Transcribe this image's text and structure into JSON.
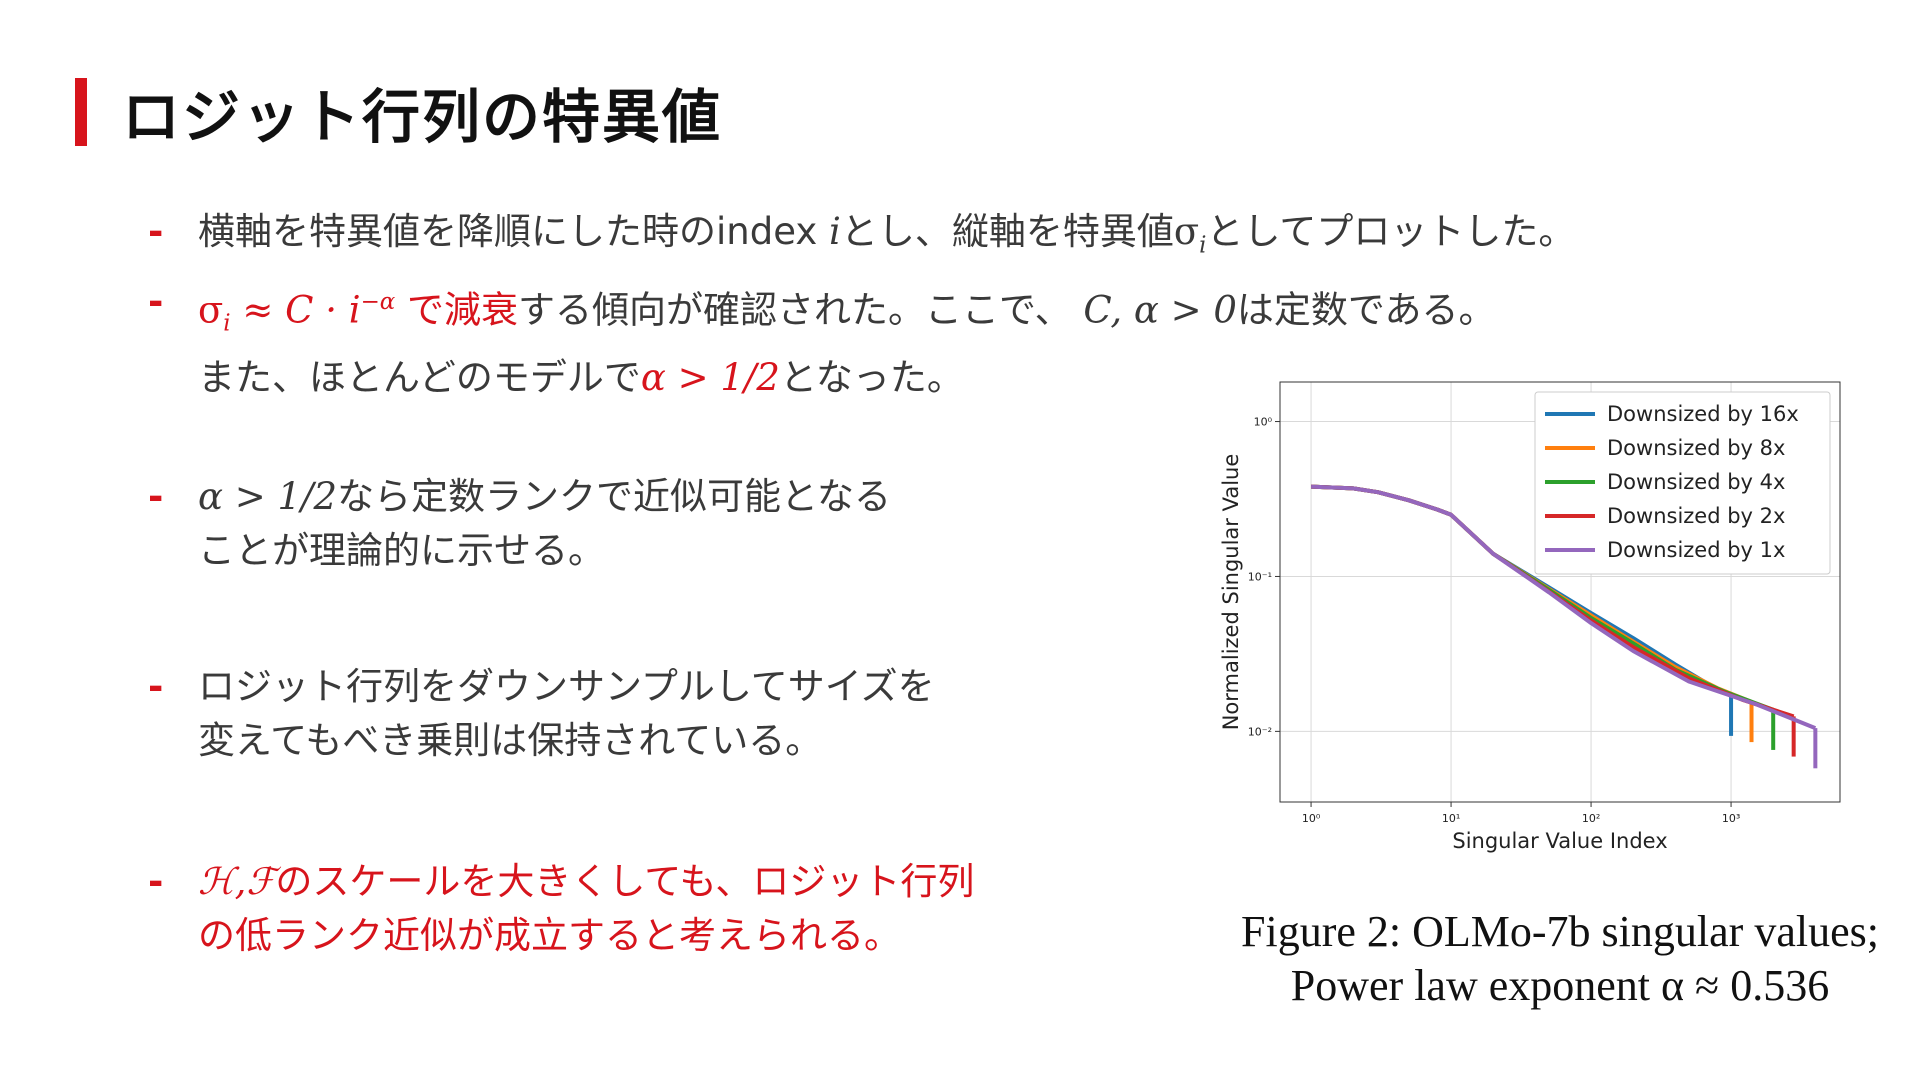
{
  "title": "ロジット行列の特異値",
  "bullets": [
    {
      "line1_pre": "横軸を特異値を降順にした時のindex ",
      "line1_var": "i",
      "line1_mid": "とし、縦軸を特異値",
      "line1_sigma": "σ",
      "line1_sub": "i",
      "line1_post": "としてプロットした。"
    },
    {
      "red_sigma": "σ",
      "red_sub": "i",
      "red_approx": " ≈ C · i",
      "red_sup": "−α",
      "red_text": " で減衰",
      "rest": "する傾向が確認された。ここで、",
      "consts": " C, α > 0",
      "rest2": "は定数である。",
      "line2_pre": "また、ほとんどのモデルで",
      "line2_red": "α > 1/2",
      "line2_post": "となった。"
    },
    {
      "math": "α > 1/2",
      "line1": "なら定数ランクで近似可能となる",
      "line2": "ことが理論的に示せる。"
    },
    {
      "line1": "ロジット行列をダウンサンプルしてサイズを",
      "line2": "変えてもべき乗則は保持されている。"
    },
    {
      "math": "ℋ,ℱ",
      "line1": "のスケールを大きくしても、ロジット行列",
      "line2": "の低ランク近似が成立すると考えられる。"
    }
  ],
  "caption": {
    "line1": "Figure 2: OLMo-7b singular values;",
    "line2": "Power law exponent α ≈ 0.536"
  },
  "chart_data": {
    "type": "line",
    "xlabel": "Singular Value Index",
    "ylabel": "Normalized Singular Value",
    "xscale": "log",
    "yscale": "log",
    "xlim": [
      0.6,
      6000
    ],
    "ylim": [
      0.0035,
      1.8
    ],
    "xticks": [
      {
        "value": 1,
        "label": "10⁰"
      },
      {
        "value": 10,
        "label": "10¹"
      },
      {
        "value": 100,
        "label": "10²"
      },
      {
        "value": 1000,
        "label": "10³"
      }
    ],
    "yticks": [
      {
        "value": 1,
        "label": "10⁰"
      },
      {
        "value": 0.1,
        "label": "10⁻¹"
      },
      {
        "value": 0.01,
        "label": "10⁻²"
      }
    ],
    "grid": true,
    "legend_position": "top-right",
    "series": [
      {
        "name": "Downsized by 16x",
        "color": "#1f77b4",
        "end": 1000,
        "points": [
          [
            1,
            0.38
          ],
          [
            2,
            0.37
          ],
          [
            3,
            0.35
          ],
          [
            5,
            0.31
          ],
          [
            8,
            0.27
          ],
          [
            10,
            0.25
          ],
          [
            20,
            0.14
          ],
          [
            50,
            0.085
          ],
          [
            100,
            0.058
          ],
          [
            200,
            0.04
          ],
          [
            400,
            0.027
          ],
          [
            700,
            0.02
          ],
          [
            1000,
            0.017
          ]
        ]
      },
      {
        "name": "Downsized by 8x",
        "color": "#ff7f0e",
        "end": 1400,
        "points": [
          [
            1,
            0.38
          ],
          [
            2,
            0.37
          ],
          [
            3,
            0.35
          ],
          [
            5,
            0.31
          ],
          [
            8,
            0.27
          ],
          [
            10,
            0.25
          ],
          [
            20,
            0.14
          ],
          [
            50,
            0.083
          ],
          [
            100,
            0.056
          ],
          [
            200,
            0.038
          ],
          [
            400,
            0.026
          ],
          [
            800,
            0.019
          ],
          [
            1400,
            0.0155
          ]
        ]
      },
      {
        "name": "Downsized by 4x",
        "color": "#2ca02c",
        "end": 2000,
        "points": [
          [
            1,
            0.38
          ],
          [
            2,
            0.37
          ],
          [
            3,
            0.35
          ],
          [
            5,
            0.31
          ],
          [
            8,
            0.27
          ],
          [
            10,
            0.25
          ],
          [
            20,
            0.14
          ],
          [
            50,
            0.082
          ],
          [
            100,
            0.054
          ],
          [
            200,
            0.037
          ],
          [
            400,
            0.025
          ],
          [
            900,
            0.018
          ],
          [
            2000,
            0.0138
          ]
        ]
      },
      {
        "name": "Downsized by 2x",
        "color": "#d62728",
        "end": 2800,
        "points": [
          [
            1,
            0.38
          ],
          [
            2,
            0.37
          ],
          [
            3,
            0.35
          ],
          [
            5,
            0.31
          ],
          [
            8,
            0.27
          ],
          [
            10,
            0.25
          ],
          [
            20,
            0.14
          ],
          [
            50,
            0.08
          ],
          [
            100,
            0.052
          ],
          [
            200,
            0.035
          ],
          [
            500,
            0.022
          ],
          [
            1200,
            0.016
          ],
          [
            2800,
            0.0125
          ]
        ]
      },
      {
        "name": "Downsized by 1x",
        "color": "#9467bd",
        "end": 4000,
        "points": [
          [
            1,
            0.38
          ],
          [
            2,
            0.37
          ],
          [
            3,
            0.35
          ],
          [
            5,
            0.31
          ],
          [
            8,
            0.27
          ],
          [
            10,
            0.25
          ],
          [
            20,
            0.14
          ],
          [
            50,
            0.079
          ],
          [
            100,
            0.05
          ],
          [
            200,
            0.033
          ],
          [
            500,
            0.021
          ],
          [
            1500,
            0.015
          ],
          [
            4000,
            0.0105
          ]
        ]
      }
    ]
  }
}
